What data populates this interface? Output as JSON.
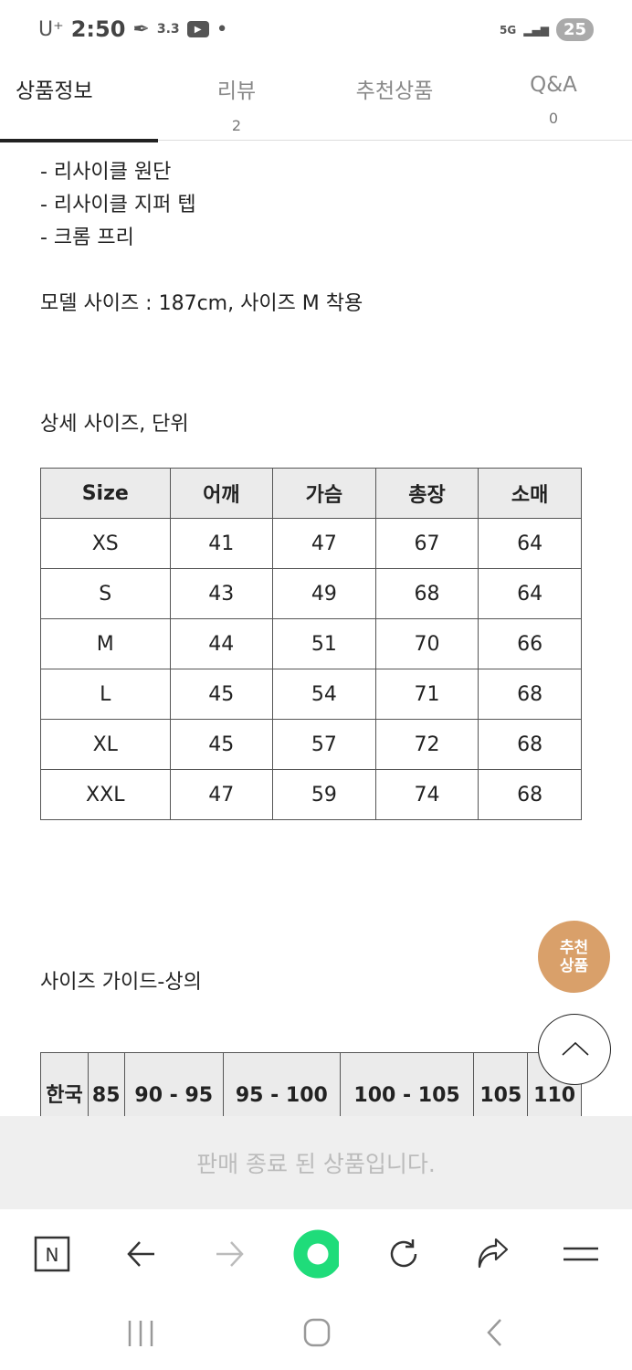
{
  "status": {
    "carrier": "U⁺",
    "time": "2:50",
    "speed": "3.3",
    "network": "5G",
    "battery": "25"
  },
  "tabs": [
    {
      "label": "상품정보",
      "count": ""
    },
    {
      "label": "리뷰",
      "count": "2"
    },
    {
      "label": "추천상품",
      "count": ""
    },
    {
      "label": "Q&A",
      "count": "0"
    }
  ],
  "content": {
    "lines": [
      "- 리사이클 원단",
      "- 리사이클 지퍼 텝",
      "- 크롬 프리"
    ],
    "model": "모델 사이즈 : 187cm, 사이즈 M 착용",
    "size_title": "상세 사이즈, 단위",
    "guide_title": "사이즈 가이드-상의"
  },
  "size_table": {
    "headers": [
      "Size",
      "어깨",
      "가슴",
      "총장",
      "소매"
    ],
    "rows": [
      [
        "XS",
        "41",
        "47",
        "67",
        "64"
      ],
      [
        "S",
        "43",
        "49",
        "68",
        "64"
      ],
      [
        "M",
        "44",
        "51",
        "70",
        "66"
      ],
      [
        "L",
        "45",
        "54",
        "71",
        "68"
      ],
      [
        "XL",
        "45",
        "57",
        "72",
        "68"
      ],
      [
        "XXL",
        "47",
        "59",
        "74",
        "68"
      ]
    ]
  },
  "guide_table": {
    "headers": [
      "한국",
      "85",
      "90 - 95",
      "95 - 100",
      "100 - 105",
      "105",
      "110"
    ]
  },
  "float": {
    "recommend": "추천 상품",
    "rec_color": "#d9a06a"
  },
  "banner": "판매 종료 된 상품입니다.",
  "browser": {
    "naver": "N",
    "accent": "#1fdc7a"
  }
}
